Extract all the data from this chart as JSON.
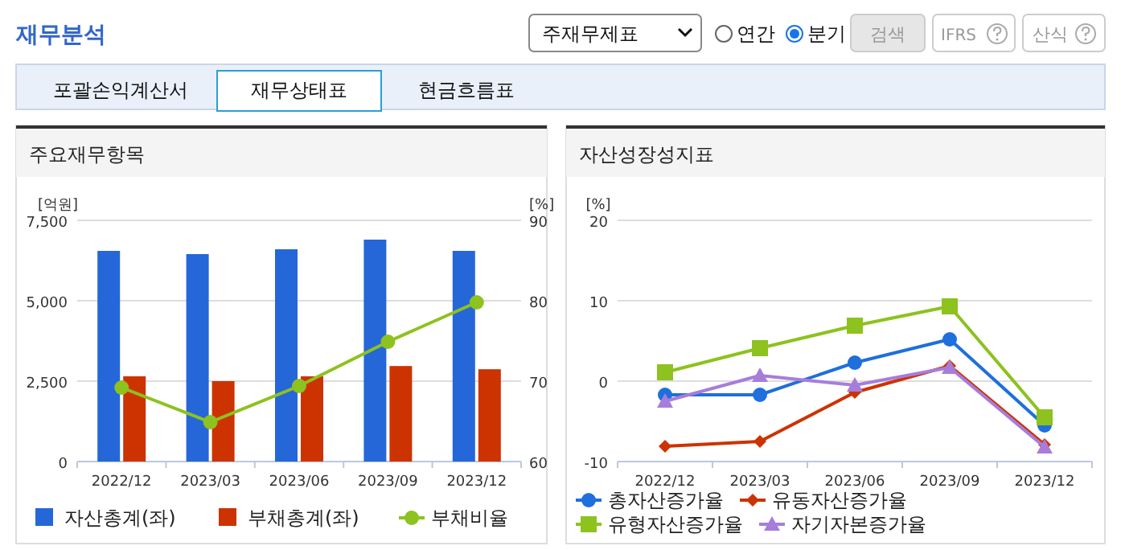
{
  "chart_data": [
    {
      "type": "bar",
      "title": "주요재무항목",
      "ylabel": "[억원]",
      "y2label": "[%]",
      "annotations": [
        "재무분석",
        "주재무제표",
        "연간",
        "분기",
        "검색",
        "IFRS",
        "산식",
        "포괄손익계산서",
        "재무상태표",
        "현금흐름표"
      ],
      "categories": [
        "2022/12",
        "2023/03",
        "2023/06",
        "2023/09",
        "2023/12"
      ],
      "series": [
        {
          "name": "자산총계(좌)",
          "color": "#2567d8",
          "values": [
            6550,
            6450,
            6600,
            6900,
            6550
          ]
        },
        {
          "name": "부채총계(좌)",
          "color": "#cc3300",
          "values": [
            2650,
            2500,
            2650,
            2970,
            2870
          ]
        },
        {
          "name": "부채비율",
          "type": "line",
          "axis": "y2",
          "marker": "circle",
          "color": "#8dc21f",
          "values": [
            69.2,
            64.9,
            69.4,
            74.9,
            79.8
          ]
        }
      ],
      "ylim": [
        0,
        7500
      ],
      "yticks": [
        0,
        {
          "value": 2500,
          "label": "2,500"
        },
        {
          "value": 5000,
          "label": "5,000"
        },
        {
          "value": 7500,
          "label": "7,500"
        }
      ],
      "y2lim": [
        60,
        90
      ],
      "y2ticks": [
        60,
        70,
        80,
        90
      ],
      "grid": "y",
      "legend": "bottom"
    },
    {
      "type": "line",
      "title": "자산성장성지표",
      "ylabel": "[%]",
      "categories": [
        "2022/12",
        "2023/03",
        "2023/06",
        "2023/09",
        "2023/12"
      ],
      "series": [
        {
          "name": "총자산증가율",
          "color": "#1f6fdc",
          "marker": "circle",
          "values": [
            -1.7,
            -1.7,
            2.3,
            5.2,
            -5.5
          ]
        },
        {
          "name": "유동자산증가율",
          "color": "#cc3300",
          "marker": "diamond",
          "values": [
            -8.1,
            -7.5,
            -1.4,
            1.9,
            -7.9
          ]
        },
        {
          "name": "유형자산증가율",
          "color": "#8dc21f",
          "marker": "square",
          "values": [
            1.1,
            4.1,
            6.9,
            9.3,
            -4.5
          ]
        },
        {
          "name": "자기자본증가율",
          "color": "#a77ddb",
          "marker": "triangle",
          "values": [
            -2.5,
            0.7,
            -0.5,
            1.7,
            -8.2
          ]
        }
      ],
      "ylim": [
        -10,
        20
      ],
      "yticks": [
        -10,
        0,
        10,
        20
      ],
      "grid": "y",
      "legend": "bottom"
    }
  ]
}
